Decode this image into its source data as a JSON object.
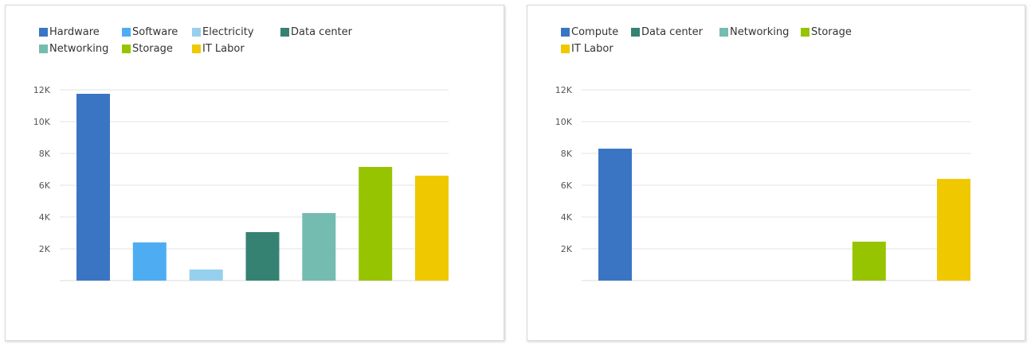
{
  "chart_data": [
    {
      "type": "bar",
      "categories": [
        "Hardware",
        "Software",
        "Electricity",
        "Data center",
        "Networking",
        "Storage",
        "IT Labor"
      ],
      "values": [
        11750,
        2400,
        700,
        3050,
        4250,
        7150,
        6600
      ],
      "colors": [
        "#3a75c4",
        "#4eadf2",
        "#97d0ee",
        "#358272",
        "#74bcb0",
        "#97c400",
        "#f0c800"
      ],
      "legend": [
        "Hardware",
        "Software",
        "Electricity",
        "Data center",
        "Networking",
        "Storage",
        "IT Labor"
      ],
      "legend_placement": "top-left",
      "ylim": [
        0,
        12000
      ],
      "yticks": [
        2000,
        4000,
        6000,
        8000,
        10000,
        12000
      ],
      "ytick_labels": [
        "2K",
        "4K",
        "6K",
        "8K",
        "10K",
        "12K"
      ],
      "grid": true
    },
    {
      "type": "bar",
      "categories": [
        "Compute",
        "Data center",
        "Networking",
        "Storage",
        "IT Labor"
      ],
      "values": [
        8300,
        0,
        0,
        2450,
        6400
      ],
      "colors": [
        "#3a75c4",
        "#358272",
        "#74bcb0",
        "#97c400",
        "#f0c800"
      ],
      "legend": [
        "Compute",
        "Data center",
        "Networking",
        "Storage",
        "IT Labor"
      ],
      "legend_placement": "top-left",
      "ylim": [
        0,
        12000
      ],
      "yticks": [
        2000,
        4000,
        6000,
        8000,
        10000,
        12000
      ],
      "ytick_labels": [
        "2K",
        "4K",
        "6K",
        "8K",
        "10K",
        "12K"
      ],
      "grid": true
    }
  ]
}
